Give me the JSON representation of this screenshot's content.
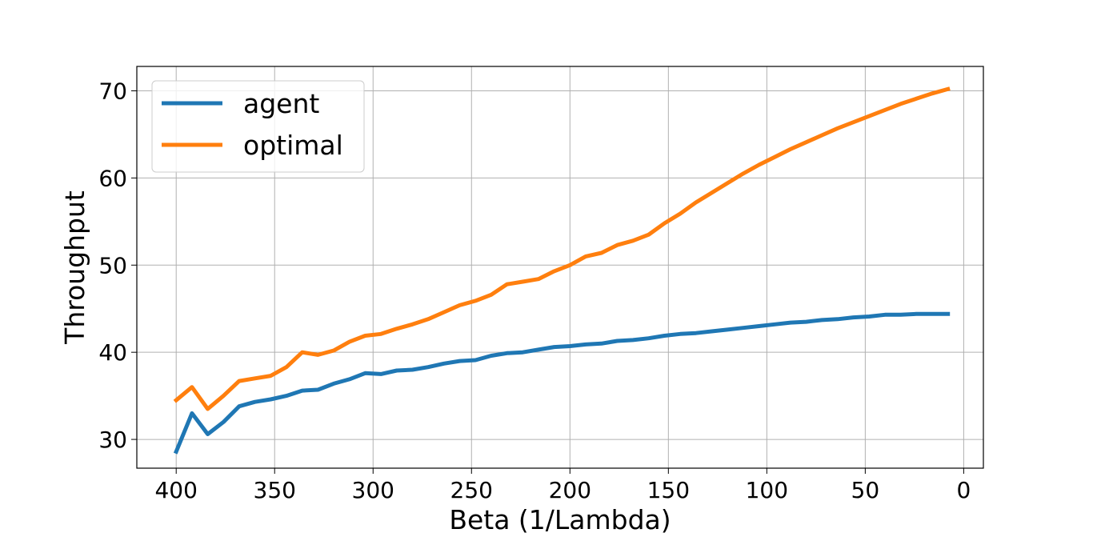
{
  "chart_data": {
    "type": "line",
    "title": "",
    "xlabel": "Beta (1/Lambda)",
    "ylabel": "Throughput",
    "xlim": [
      420,
      -10
    ],
    "ylim": [
      26.7,
      72.8
    ],
    "x_inverted": true,
    "grid": true,
    "legend_position": "top-left",
    "xticks": [
      400,
      350,
      300,
      250,
      200,
      150,
      100,
      50,
      0
    ],
    "yticks": [
      30,
      40,
      50,
      60,
      70
    ],
    "series": [
      {
        "name": "agent",
        "color": "#1f77b4",
        "x": [
          400,
          392,
          384,
          376,
          368,
          360,
          352,
          344,
          336,
          328,
          320,
          312,
          304,
          296,
          288,
          280,
          272,
          264,
          256,
          248,
          240,
          232,
          224,
          216,
          208,
          200,
          192,
          184,
          176,
          168,
          160,
          152,
          144,
          136,
          128,
          120,
          112,
          104,
          96,
          88,
          80,
          72,
          64,
          56,
          48,
          40,
          32,
          24,
          16,
          8
        ],
        "y": [
          28.6,
          33.0,
          30.6,
          32.0,
          33.8,
          34.3,
          34.6,
          35.0,
          35.6,
          35.7,
          36.4,
          36.9,
          37.6,
          37.5,
          37.9,
          38.0,
          38.3,
          38.7,
          39.0,
          39.1,
          39.6,
          39.9,
          40.0,
          40.3,
          40.6,
          40.7,
          40.9,
          41.0,
          41.3,
          41.4,
          41.6,
          41.9,
          42.1,
          42.2,
          42.4,
          42.6,
          42.8,
          43.0,
          43.2,
          43.4,
          43.5,
          43.7,
          43.8,
          44.0,
          44.1,
          44.3,
          44.3,
          44.4,
          44.4,
          44.4
        ]
      },
      {
        "name": "optimal",
        "color": "#ff7f0e",
        "x": [
          400,
          392,
          384,
          376,
          368,
          360,
          352,
          344,
          336,
          328,
          320,
          312,
          304,
          296,
          288,
          280,
          272,
          264,
          256,
          248,
          240,
          232,
          224,
          216,
          208,
          200,
          192,
          184,
          176,
          168,
          160,
          152,
          144,
          136,
          128,
          120,
          112,
          104,
          96,
          88,
          80,
          72,
          64,
          56,
          48,
          40,
          32,
          24,
          16,
          8
        ],
        "y": [
          34.5,
          36.0,
          33.5,
          35.0,
          36.7,
          37.0,
          37.3,
          38.3,
          40.0,
          39.7,
          40.2,
          41.2,
          41.9,
          42.1,
          42.7,
          43.2,
          43.8,
          44.6,
          45.4,
          45.9,
          46.6,
          47.8,
          48.1,
          48.4,
          49.3,
          50.0,
          51.0,
          51.4,
          52.3,
          52.8,
          53.5,
          54.8,
          55.9,
          57.2,
          58.3,
          59.4,
          60.5,
          61.5,
          62.4,
          63.3,
          64.1,
          64.9,
          65.7,
          66.4,
          67.1,
          67.8,
          68.5,
          69.1,
          69.7,
          70.2
        ]
      }
    ]
  }
}
